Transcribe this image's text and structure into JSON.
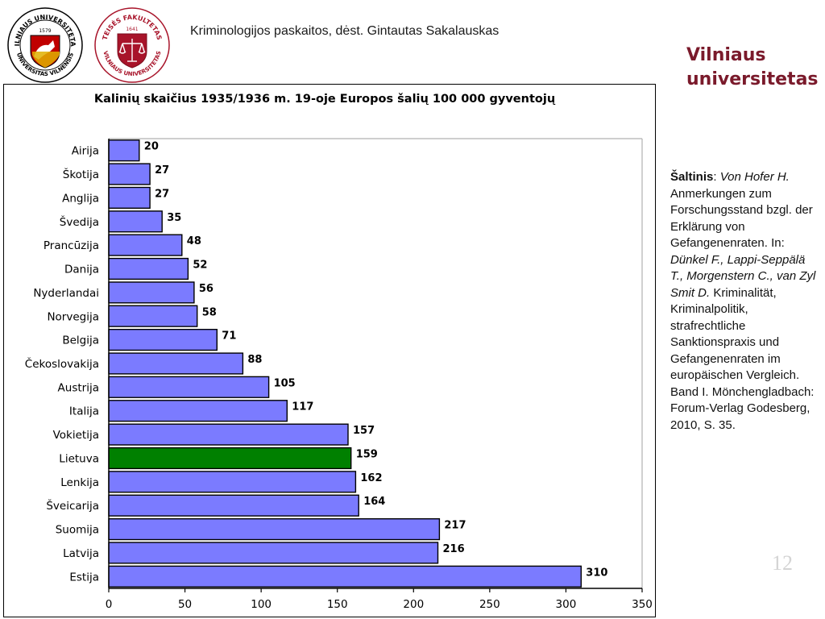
{
  "header": {
    "lecture": "Kriminologijos paskaitos, dėst. Gintautas Sakalauskas",
    "brand_line1": "Vilniaus",
    "brand_line2": "universitetas"
  },
  "logos": {
    "vu": {
      "icon": "vilnius-university-seal-icon",
      "ring_top": "VILNIAUS UNIVERSITETAS",
      "ring_bottom": "UNIVERSITAS VILNENSIS",
      "year": "1579"
    },
    "tf": {
      "icon": "law-faculty-scales-icon",
      "ring_top": "TEISĖS FAKULTETAS",
      "ring_bottom": "VILNIAUS UNIVERSITETAS",
      "year": "1641"
    }
  },
  "source": {
    "label": "Šaltinis",
    "sep": ": ",
    "author": "Von Hofer H.",
    "text1": " Anmerkungen zum Forschungsstand bzgl. der Erklärung von Gefangenenraten. In: ",
    "editors": "Dünkel F., Lappi-Seppälä T., Morgenstern C., van Zyl Smit D.",
    "text2": " Kriminalität, Kriminalpolitik, strafrechtliche Sanktionspraxis und Gefangenenraten im europäischen Vergleich. Band I. Mönchengladbach: Forum-Verlag Godesberg, 2010, S. 35."
  },
  "page_number": "12",
  "colors": {
    "bar": "#7b7bff",
    "highlight": "#008000",
    "border": "#000000",
    "grid": "#c0c0c0"
  },
  "chart_data": {
    "type": "bar",
    "orientation": "horizontal",
    "title": "Kalinių skaičius 1935/1936 m. 19-oje Europos šalių 100 000 gyventojų",
    "xlabel": "",
    "ylabel": "",
    "xlim": [
      0,
      350
    ],
    "xticks": [
      0,
      50,
      100,
      150,
      200,
      250,
      300,
      350
    ],
    "grid": false,
    "categories": [
      "Airija",
      "Škotija",
      "Anglija",
      "Švedija",
      "Prancūzija",
      "Danija",
      "Nyderlandai",
      "Norvegija",
      "Belgija",
      "Čekoslovakija",
      "Austrija",
      "Italija",
      "Vokietija",
      "Lietuva",
      "Lenkija",
      "Šveicarija",
      "Suomija",
      "Latvija",
      "Estija"
    ],
    "values": [
      20,
      27,
      27,
      35,
      48,
      52,
      56,
      58,
      71,
      88,
      105,
      117,
      157,
      159,
      162,
      164,
      217,
      216,
      310
    ],
    "highlight": "Lietuva"
  }
}
